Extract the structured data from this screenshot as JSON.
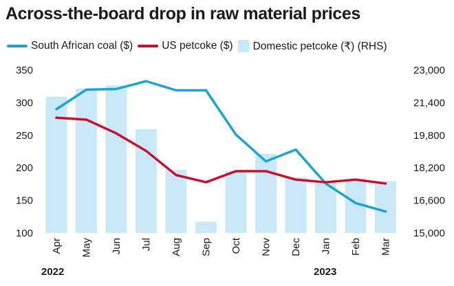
{
  "title": "Across-the-board drop in raw material prices",
  "colors": {
    "coal": "#1ba4cf",
    "petcoke": "#c8102e",
    "domestic": "#c9e9f9"
  },
  "chart_data": {
    "type": "bar+line",
    "title": "Across-the-board drop in raw material prices",
    "categories": [
      "Apr",
      "May",
      "Jun",
      "Jul",
      "Aug",
      "Sep",
      "Oct",
      "Nov",
      "Dec",
      "Jan",
      "Feb",
      "Mar"
    ],
    "year_labels": [
      "2022",
      "2023"
    ],
    "left_axis": {
      "ylim": [
        100,
        350
      ],
      "ticks": [
        "100",
        "150",
        "200",
        "250",
        "300",
        "350"
      ]
    },
    "right_axis": {
      "ylim": [
        15000,
        23000
      ],
      "ticks": [
        "15,000",
        "16,600",
        "18,200",
        "19,800",
        "21,400",
        "23,000"
      ]
    },
    "series": [
      {
        "name": "South African coal ($)",
        "type": "line",
        "axis": "left",
        "values": [
          290,
          320,
          321,
          333,
          319,
          319,
          251,
          210,
          228,
          176,
          146,
          133
        ]
      },
      {
        "name": "US petcoke ($)",
        "type": "line",
        "axis": "left",
        "values": [
          277,
          274,
          253,
          226,
          189,
          178,
          195,
          195,
          182,
          178,
          182,
          176
        ]
      },
      {
        "name": "Domestic petcoke (₹) (RHS)",
        "type": "bar",
        "axis": "right",
        "values": [
          21700,
          22100,
          22250,
          20100,
          18100,
          15550,
          18050,
          18900,
          17750,
          17550,
          17650,
          17550
        ]
      }
    ],
    "legend": "top",
    "grid": false
  }
}
